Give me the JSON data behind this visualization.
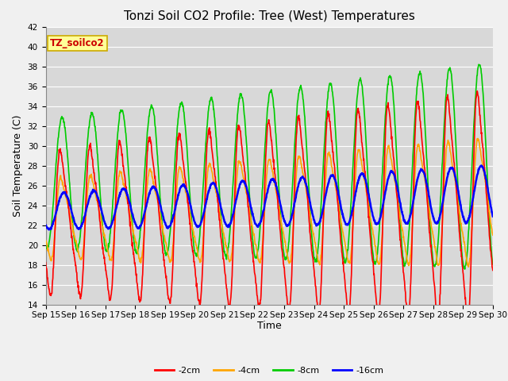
{
  "title": "Tonzi Soil CO2 Profile: Tree (West) Temperatures",
  "xlabel": "Time",
  "ylabel": "Soil Temperature (C)",
  "ylim": [
    14,
    42
  ],
  "yticks": [
    14,
    16,
    18,
    20,
    22,
    24,
    26,
    28,
    30,
    32,
    34,
    36,
    38,
    40,
    42
  ],
  "xtick_labels": [
    "Sep 15",
    "Sep 16",
    "Sep 17",
    "Sep 18",
    "Sep 19",
    "Sep 20",
    "Sep 21",
    "Sep 22",
    "Sep 23",
    "Sep 24",
    "Sep 25",
    "Sep 26",
    "Sep 27",
    "Sep 28",
    "Sep 29",
    "Sep 30"
  ],
  "legend_label": "TZ_soilco2",
  "series_labels": [
    "-2cm",
    "-4cm",
    "-8cm",
    "-16cm"
  ],
  "series_colors": [
    "#ff0000",
    "#ffa500",
    "#00cc00",
    "#0000ff"
  ],
  "series_linewidths": [
    1.2,
    1.2,
    1.2,
    1.8
  ],
  "fig_facecolor": "#f0f0f0",
  "plot_bg_color": "#d8d8d8",
  "grid_color": "#ffffff",
  "title_fontsize": 11,
  "axis_label_fontsize": 9,
  "tick_fontsize": 7.5,
  "legend_box_facecolor": "#ffff99",
  "legend_box_edgecolor": "#ccaa00",
  "legend_text_color": "#cc0000",
  "legend_label_fontsize": 8
}
